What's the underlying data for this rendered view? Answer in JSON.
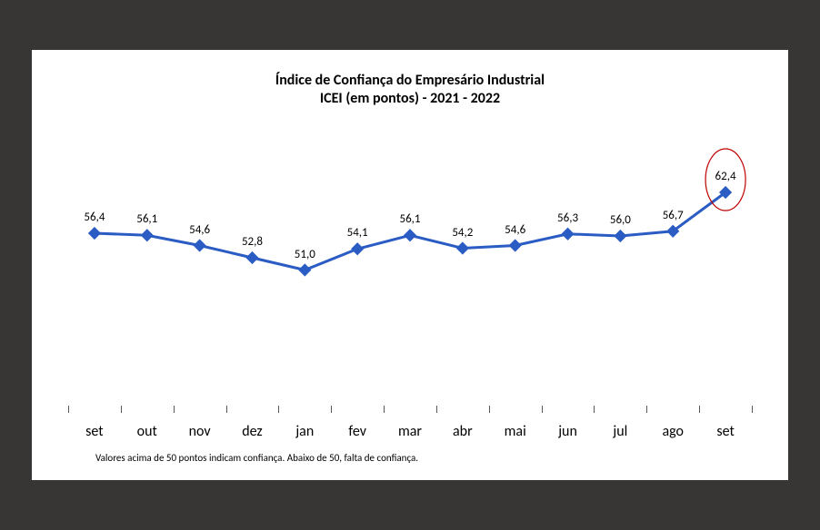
{
  "chart": {
    "type": "line",
    "title_line1": "Índice de Confiança do Empresário Industrial",
    "title_line2": "ICEI (em pontos) - 2021 - 2022",
    "title_fontsize": 16,
    "title_color": "#000000",
    "footnote": "Valores acima de 50 pontos indicam confiança. Abaixo de 50, falta de confiança.",
    "footnote_fontsize": 11,
    "background_color": "#ffffff",
    "page_background": "#383535",
    "categories": [
      "set",
      "out",
      "nov",
      "dez",
      "jan",
      "fev",
      "mar",
      "abr",
      "mai",
      "jun",
      "jul",
      "ago",
      "set"
    ],
    "values": [
      56.4,
      56.1,
      54.6,
      52.8,
      51.0,
      54.1,
      56.1,
      54.2,
      54.6,
      56.3,
      56.0,
      56.7,
      62.4
    ],
    "value_labels": [
      "56,4",
      "56,1",
      "54,6",
      "52,8",
      "51,0",
      "54,1",
      "56,1",
      "54,2",
      "54,6",
      "56,3",
      "56,0",
      "56,7",
      "62,4"
    ],
    "ylim": [
      30,
      70
    ],
    "line_color": "#2a5cc4",
    "line_width": 3,
    "marker_color": "#2a5cc4",
    "marker_size": 5,
    "xlabel_fontsize": 16,
    "xlabel_color": "#000000",
    "datalabel_fontsize": 13,
    "datalabel_color": "#000000",
    "tick_color": "#595959",
    "highlight": {
      "index": 12,
      "ellipse_color": "#c00000",
      "ellipse_rx": 22,
      "ellipse_ry": 34,
      "ellipse_stroke": 1.2
    }
  }
}
